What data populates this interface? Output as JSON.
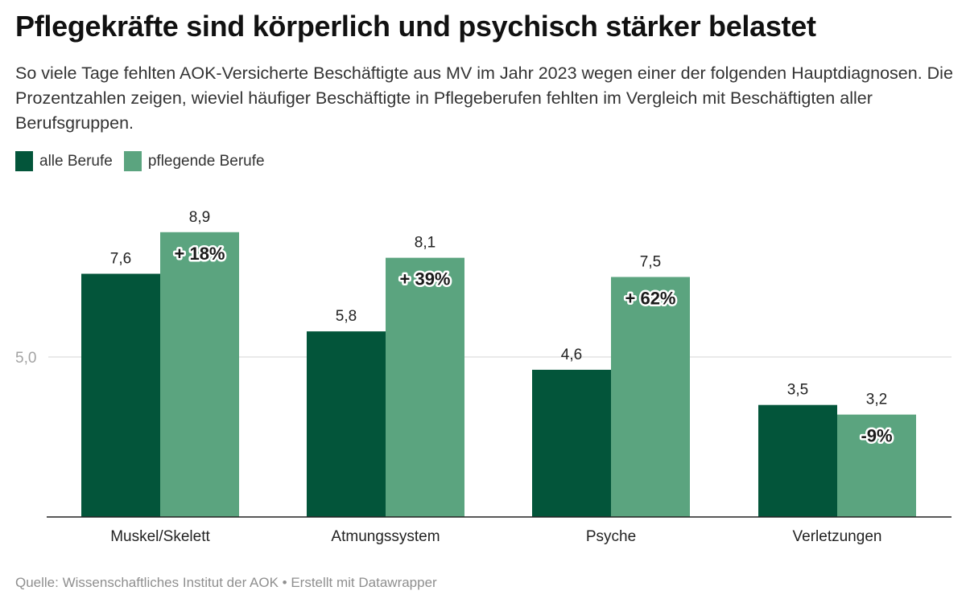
{
  "header": {
    "title": "Pflegekräfte sind körperlich und psychisch stärker belastet",
    "subtitle": "So viele Tage fehlten AOK-Versicherte Beschäftigte aus MV im Jahr 2023 wegen einer der folgenden Hauptdiagnosen. Die Prozentzahlen zeigen, wieviel häufiger Beschäftigte in Pflegeberufen fehlten im Vergleich mit Beschäftigten aller Berufsgruppen."
  },
  "legend": [
    {
      "label": "alle Berufe",
      "color": "#03553a"
    },
    {
      "label": "pflegende Berufe",
      "color": "#5ba47f"
    }
  ],
  "chart_data": {
    "type": "bar",
    "title": "Pflegekräfte sind körperlich und psychisch stärker belastet",
    "xlabel": "",
    "ylabel": "",
    "categories": [
      "Muskel/Skelett",
      "Atmungssystem",
      "Psyche",
      "Verletzungen"
    ],
    "series": [
      {
        "name": "alle Berufe",
        "color": "#03553a",
        "values": [
          7.6,
          5.8,
          4.6,
          3.5
        ],
        "labels": [
          "7,6",
          "5,8",
          "4,6",
          "3,5"
        ]
      },
      {
        "name": "pflegende Berufe",
        "color": "#5ba47f",
        "values": [
          8.9,
          8.1,
          7.5,
          3.2
        ],
        "labels": [
          "8,9",
          "8,1",
          "7,5",
          "3,2"
        ]
      }
    ],
    "annotations": [
      "+ 18%",
      "+ 39%",
      "+ 62%",
      "-9%"
    ],
    "yticks": [
      {
        "value": 5.0,
        "label": "5,0"
      }
    ],
    "ylim": [
      0,
      10
    ],
    "grid": true,
    "legend_position": "top-left"
  },
  "footer": {
    "source": "Quelle: Wissenschaftliches Institut der AOK • Erstellt mit Datawrapper"
  }
}
